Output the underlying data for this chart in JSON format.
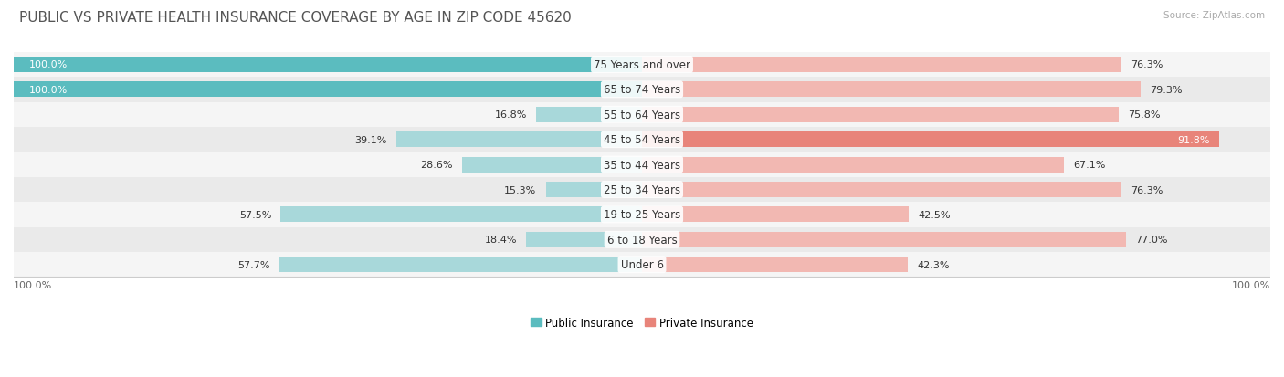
{
  "title": "PUBLIC VS PRIVATE HEALTH INSURANCE COVERAGE BY AGE IN ZIP CODE 45620",
  "source": "Source: ZipAtlas.com",
  "categories": [
    "Under 6",
    "6 to 18 Years",
    "19 to 25 Years",
    "25 to 34 Years",
    "35 to 44 Years",
    "45 to 54 Years",
    "55 to 64 Years",
    "65 to 74 Years",
    "75 Years and over"
  ],
  "public_values": [
    57.7,
    18.4,
    57.5,
    15.3,
    28.6,
    39.1,
    16.8,
    100.0,
    100.0
  ],
  "private_values": [
    42.3,
    77.0,
    42.5,
    76.3,
    67.1,
    91.8,
    75.8,
    79.3,
    76.3
  ],
  "public_color": "#5bbcbf",
  "private_color": "#e8847a",
  "public_color_light": "#a8d8da",
  "private_color_light": "#f2b8b2",
  "row_bg_colors": [
    "#f5f5f5",
    "#eaeaea"
  ],
  "title_fontsize": 11,
  "label_fontsize": 8.5,
  "value_fontsize": 8,
  "x_axis_label_left": "100.0%",
  "x_axis_label_right": "100.0%",
  "legend_labels": [
    "Public Insurance",
    "Private Insurance"
  ]
}
